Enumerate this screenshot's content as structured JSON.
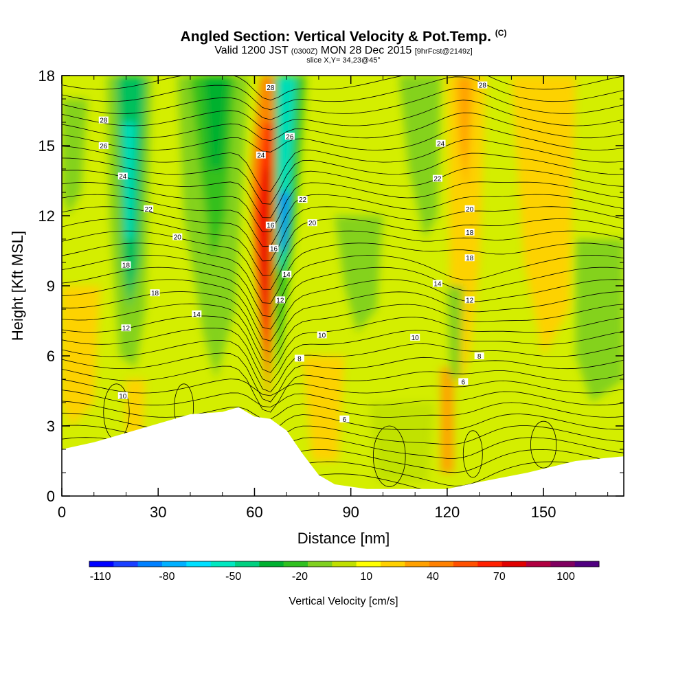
{
  "header": {
    "title_main": "Angled Section: Vertical Velocity & Pot.Temp.",
    "title_mark": "(C)",
    "valid_prefix": "Valid 1200 JST",
    "valid_utc": "(0300Z)",
    "valid_date": "MON 28 Dec 2015",
    "forecast": "[9hrFcst@2149z]",
    "slice": "slice X,Y= 34,23@45°"
  },
  "chart_data": {
    "type": "heatmap",
    "xlabel": "Distance [nm]",
    "ylabel": "Height [Kft MSL]",
    "xlim": [
      0,
      175
    ],
    "ylim": [
      0,
      18
    ],
    "x_ticks": [
      "0",
      "30",
      "60",
      "90",
      "120",
      "150"
    ],
    "x_tick_values": [
      0,
      30,
      60,
      90,
      120,
      150
    ],
    "y_ticks": [
      "0",
      "3",
      "6",
      "9",
      "12",
      "15",
      "18"
    ],
    "y_tick_values": [
      0,
      3,
      6,
      9,
      12,
      15,
      18
    ],
    "colorbar": {
      "label": "Vertical Velocity [cm/s]",
      "tick_labels": [
        "-110",
        "-80",
        "-50",
        "-20",
        "10",
        "40",
        "70",
        "100"
      ],
      "tick_values": [
        -110,
        -80,
        -50,
        -20,
        10,
        40,
        70,
        100
      ],
      "colors": [
        "#0000ff",
        "#1a3fff",
        "#0080ff",
        "#00b0ff",
        "#00e0ff",
        "#00e8c0",
        "#00d080",
        "#00b030",
        "#30c020",
        "#80d020",
        "#c0e000",
        "#ffff00",
        "#ffd000",
        "#ffa000",
        "#ff8000",
        "#ff5000",
        "#ff2000",
        "#e00000",
        "#b00040",
        "#800060",
        "#500080"
      ]
    },
    "terrain": [
      [
        0,
        2.0
      ],
      [
        10,
        2.3
      ],
      [
        20,
        2.7
      ],
      [
        30,
        3.1
      ],
      [
        40,
        3.5
      ],
      [
        50,
        3.6
      ],
      [
        55,
        3.8
      ],
      [
        60,
        3.4
      ],
      [
        65,
        3.3
      ],
      [
        70,
        2.8
      ],
      [
        75,
        1.8
      ],
      [
        80,
        0.9
      ],
      [
        85,
        0.5
      ],
      [
        95,
        0.3
      ],
      [
        120,
        0.3
      ],
      [
        130,
        0.6
      ],
      [
        145,
        1.0
      ],
      [
        160,
        1.5
      ],
      [
        175,
        1.7
      ]
    ],
    "theta_labels": [
      {
        "text": "28",
        "x": 13,
        "y": 16.1
      },
      {
        "text": "26",
        "x": 13,
        "y": 15.0
      },
      {
        "text": "24",
        "x": 19,
        "y": 13.7
      },
      {
        "text": "22",
        "x": 27,
        "y": 12.3
      },
      {
        "text": "20",
        "x": 36,
        "y": 11.1
      },
      {
        "text": "18",
        "x": 20,
        "y": 9.9
      },
      {
        "text": "18",
        "x": 29,
        "y": 8.7
      },
      {
        "text": "14",
        "x": 42,
        "y": 7.8
      },
      {
        "text": "12",
        "x": 20,
        "y": 7.2
      },
      {
        "text": "10",
        "x": 19,
        "y": 4.3
      },
      {
        "text": "28",
        "x": 65,
        "y": 17.5
      },
      {
        "text": "26",
        "x": 71,
        "y": 15.4
      },
      {
        "text": "24",
        "x": 62,
        "y": 14.6
      },
      {
        "text": "22",
        "x": 75,
        "y": 12.7
      },
      {
        "text": "20",
        "x": 78,
        "y": 11.7
      },
      {
        "text": "16",
        "x": 65,
        "y": 11.6
      },
      {
        "text": "16",
        "x": 66,
        "y": 10.6
      },
      {
        "text": "14",
        "x": 70,
        "y": 9.5
      },
      {
        "text": "12",
        "x": 68,
        "y": 8.4
      },
      {
        "text": "10",
        "x": 81,
        "y": 6.9
      },
      {
        "text": "8",
        "x": 74,
        "y": 5.9
      },
      {
        "text": "6",
        "x": 88,
        "y": 3.3
      },
      {
        "text": "28",
        "x": 131,
        "y": 17.6
      },
      {
        "text": "24",
        "x": 118,
        "y": 15.1
      },
      {
        "text": "22",
        "x": 117,
        "y": 13.6
      },
      {
        "text": "20",
        "x": 127,
        "y": 12.3
      },
      {
        "text": "18",
        "x": 127,
        "y": 11.3
      },
      {
        "text": "18",
        "x": 127,
        "y": 10.2
      },
      {
        "text": "14",
        "x": 117,
        "y": 9.1
      },
      {
        "text": "12",
        "x": 127,
        "y": 8.4
      },
      {
        "text": "10",
        "x": 110,
        "y": 6.8
      },
      {
        "text": "8",
        "x": 130,
        "y": 6.0
      },
      {
        "text": "6",
        "x": 125,
        "y": 4.9
      }
    ]
  }
}
